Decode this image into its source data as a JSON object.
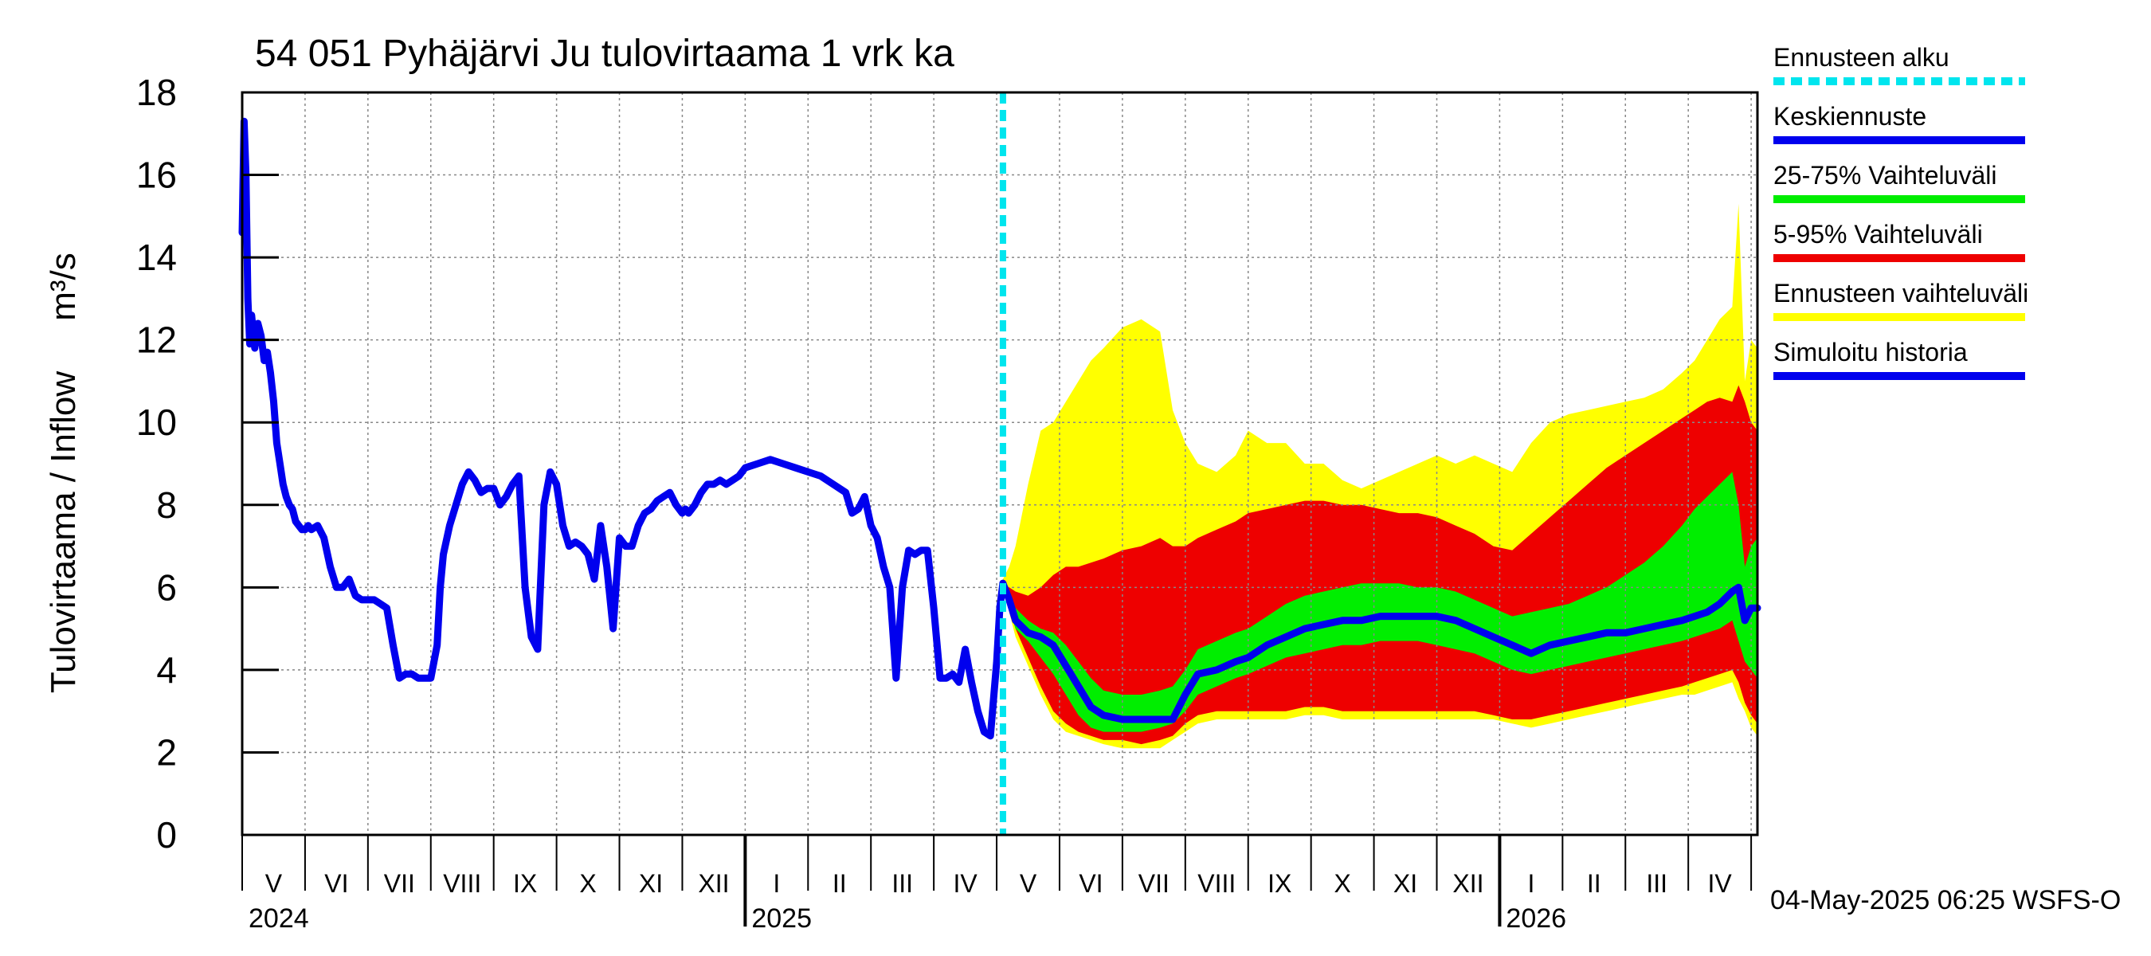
{
  "chart_data": {
    "type": "line",
    "title": "54 051 Pyhäjärvi Ju tulovirtaama 1 vrk ka",
    "ylabel_main": "Tulovirtaama / Inflow",
    "ylabel_unit": "m³/s",
    "ylim": [
      0,
      18
    ],
    "yticks": [
      "0",
      "2",
      "4",
      "6",
      "8",
      "10",
      "12",
      "14",
      "16",
      "18"
    ],
    "x_start_month": 0,
    "x_end_month": 24.1,
    "forecast_start_month": 12.1,
    "months": [
      {
        "label": "V"
      },
      {
        "label": "VI"
      },
      {
        "label": "VII"
      },
      {
        "label": "VIII"
      },
      {
        "label": "IX"
      },
      {
        "label": "X"
      },
      {
        "label": "XI"
      },
      {
        "label": "XII"
      },
      {
        "label": "I"
      },
      {
        "label": "II"
      },
      {
        "label": "III"
      },
      {
        "label": "IV"
      },
      {
        "label": "V"
      },
      {
        "label": "VI"
      },
      {
        "label": "VII"
      },
      {
        "label": "VIII"
      },
      {
        "label": "IX"
      },
      {
        "label": "X"
      },
      {
        "label": "XI"
      },
      {
        "label": "XII"
      },
      {
        "label": "I"
      },
      {
        "label": "II"
      },
      {
        "label": "III"
      },
      {
        "label": "IV"
      }
    ],
    "years": [
      {
        "label": "2024",
        "month": 0
      },
      {
        "label": "2025",
        "month": 8
      },
      {
        "label": "2026",
        "month": 20
      }
    ],
    "legend": [
      {
        "label": "Ennusteen alku",
        "color": "#00e5ee",
        "style": "dashed"
      },
      {
        "label": "Keskiennuste",
        "color": "#0000ee",
        "style": "solid"
      },
      {
        "label": "25-75% Vaihteluväli",
        "color": "#00ee00",
        "style": "solid"
      },
      {
        "label": "5-95% Vaihteluväli",
        "color": "#ee0000",
        "style": "solid"
      },
      {
        "label": "Ennusteen vaihteluväli",
        "color": "#ffff00",
        "style": "solid"
      },
      {
        "label": "Simuloitu historia",
        "color": "#0000ee",
        "style": "solid"
      }
    ],
    "footer": "04-May-2025 06:25 WSFS-O",
    "series": [
      {
        "name": "Simuloitu historia",
        "color": "#0000ee",
        "x": [
          0.0,
          0.03,
          0.06,
          0.09,
          0.12,
          0.15,
          0.2,
          0.25,
          0.3,
          0.35,
          0.4,
          0.45,
          0.5,
          0.55,
          0.6,
          0.65,
          0.7,
          0.75,
          0.8,
          0.85,
          0.9,
          0.95,
          1.0,
          1.05,
          1.1,
          1.2,
          1.3,
          1.4,
          1.5,
          1.6,
          1.7,
          1.8,
          1.9,
          2.0,
          2.1,
          2.2,
          2.3,
          2.4,
          2.5,
          2.6,
          2.7,
          2.8,
          2.9,
          3.0,
          3.1,
          3.15,
          3.2,
          3.3,
          3.4,
          3.5,
          3.6,
          3.7,
          3.8,
          3.9,
          4.0,
          4.1,
          4.2,
          4.3,
          4.4,
          4.5,
          4.6,
          4.7,
          4.8,
          4.9,
          5.0,
          5.1,
          5.2,
          5.3,
          5.4,
          5.5,
          5.6,
          5.7,
          5.8,
          5.9,
          6.0,
          6.1,
          6.2,
          6.3,
          6.4,
          6.5,
          6.6,
          6.7,
          6.8,
          6.9,
          7.0,
          7.05,
          7.1,
          7.15,
          7.2,
          7.3,
          7.4,
          7.5,
          7.6,
          7.7,
          7.8,
          7.9,
          8.0,
          8.2,
          8.4,
          8.6,
          8.8,
          9.0,
          9.2,
          9.4,
          9.6,
          9.7,
          9.8,
          9.9,
          10.0,
          10.1,
          10.2,
          10.3,
          10.4,
          10.5,
          10.6,
          10.7,
          10.8,
          10.9,
          11.0,
          11.1,
          11.2,
          11.3,
          11.4,
          11.5,
          11.6,
          11.7,
          11.8,
          11.9,
          12.0,
          12.05,
          12.1
        ],
        "values": [
          14.6,
          17.3,
          16.0,
          13.0,
          11.9,
          12.6,
          11.8,
          12.4,
          12.1,
          11.5,
          11.7,
          11.2,
          10.5,
          9.5,
          9.0,
          8.5,
          8.2,
          8.0,
          7.9,
          7.6,
          7.5,
          7.4,
          7.4,
          7.5,
          7.4,
          7.5,
          7.2,
          6.5,
          6.0,
          6.0,
          6.2,
          5.8,
          5.7,
          5.7,
          5.7,
          5.6,
          5.5,
          4.6,
          3.8,
          3.9,
          3.9,
          3.8,
          3.8,
          3.8,
          4.6,
          6.0,
          6.8,
          7.5,
          8.0,
          8.5,
          8.8,
          8.6,
          8.3,
          8.4,
          8.4,
          8.0,
          8.2,
          8.5,
          8.7,
          6.0,
          4.8,
          4.5,
          8.0,
          8.8,
          8.5,
          7.5,
          7.0,
          7.1,
          7.0,
          6.8,
          6.2,
          7.5,
          6.5,
          5.0,
          7.2,
          7.0,
          7.0,
          7.5,
          7.8,
          7.9,
          8.1,
          8.2,
          8.3,
          8.0,
          7.8,
          7.9,
          7.8,
          7.9,
          8.0,
          8.3,
          8.5,
          8.5,
          8.6,
          8.5,
          8.6,
          8.7,
          8.9,
          9.0,
          9.1,
          9.0,
          8.9,
          8.8,
          8.7,
          8.5,
          8.3,
          7.8,
          7.9,
          8.2,
          7.5,
          7.2,
          6.5,
          6.0,
          3.8,
          6.0,
          6.9,
          6.8,
          6.9,
          6.9,
          5.5,
          3.8,
          3.8,
          3.9,
          3.7,
          4.5,
          3.7,
          3.0,
          2.5,
          2.4,
          4.2,
          5.5,
          6.1
        ]
      },
      {
        "name": "Keskiennuste",
        "color": "#0000ee",
        "x": [
          12.1,
          12.2,
          12.3,
          12.5,
          12.7,
          12.9,
          13.1,
          13.3,
          13.5,
          13.7,
          14.0,
          14.3,
          14.6,
          14.8,
          15.0,
          15.2,
          15.5,
          15.8,
          16.0,
          16.3,
          16.6,
          16.9,
          17.2,
          17.5,
          17.8,
          18.1,
          18.4,
          18.7,
          19.0,
          19.3,
          19.6,
          19.9,
          20.2,
          20.5,
          20.8,
          21.1,
          21.4,
          21.7,
          22.0,
          22.3,
          22.6,
          22.9,
          23.1,
          23.3,
          23.5,
          23.7,
          23.8,
          23.9,
          24.0,
          24.1
        ],
        "values": [
          6.1,
          5.7,
          5.2,
          4.9,
          4.8,
          4.6,
          4.1,
          3.6,
          3.1,
          2.9,
          2.8,
          2.8,
          2.8,
          2.8,
          3.4,
          3.9,
          4.0,
          4.2,
          4.3,
          4.6,
          4.8,
          5.0,
          5.1,
          5.2,
          5.2,
          5.3,
          5.3,
          5.3,
          5.3,
          5.2,
          5.0,
          4.8,
          4.6,
          4.4,
          4.6,
          4.7,
          4.8,
          4.9,
          4.9,
          5.0,
          5.1,
          5.2,
          5.3,
          5.4,
          5.6,
          5.9,
          6.0,
          5.2,
          5.5,
          5.5
        ]
      }
    ],
    "bands": {
      "x": [
        12.1,
        12.2,
        12.3,
        12.5,
        12.7,
        12.9,
        13.1,
        13.3,
        13.5,
        13.7,
        14.0,
        14.3,
        14.6,
        14.8,
        15.0,
        15.2,
        15.5,
        15.8,
        16.0,
        16.3,
        16.6,
        16.9,
        17.2,
        17.5,
        17.8,
        18.1,
        18.4,
        18.7,
        19.0,
        19.3,
        19.6,
        19.9,
        20.2,
        20.5,
        20.8,
        21.1,
        21.4,
        21.7,
        22.0,
        22.3,
        22.6,
        22.9,
        23.1,
        23.3,
        23.5,
        23.7,
        23.8,
        23.9,
        24.0,
        24.1
      ],
      "min": [
        6.1,
        5.4,
        4.8,
        4.1,
        3.4,
        2.8,
        2.5,
        2.4,
        2.3,
        2.2,
        2.1,
        2.1,
        2.1,
        2.3,
        2.5,
        2.7,
        2.8,
        2.8,
        2.8,
        2.8,
        2.8,
        2.9,
        2.9,
        2.8,
        2.8,
        2.8,
        2.8,
        2.8,
        2.8,
        2.8,
        2.8,
        2.8,
        2.7,
        2.6,
        2.7,
        2.8,
        2.9,
        3.0,
        3.1,
        3.2,
        3.3,
        3.4,
        3.4,
        3.5,
        3.6,
        3.7,
        3.3,
        3.0,
        2.6,
        2.4
      ],
      "p5": [
        6.1,
        5.5,
        5.0,
        4.3,
        3.6,
        3.0,
        2.7,
        2.5,
        2.4,
        2.3,
        2.3,
        2.2,
        2.3,
        2.4,
        2.7,
        2.9,
        3.0,
        3.0,
        3.0,
        3.0,
        3.0,
        3.1,
        3.1,
        3.0,
        3.0,
        3.0,
        3.0,
        3.0,
        3.0,
        3.0,
        3.0,
        2.9,
        2.8,
        2.8,
        2.9,
        3.0,
        3.1,
        3.2,
        3.3,
        3.4,
        3.5,
        3.6,
        3.7,
        3.8,
        3.9,
        4.0,
        3.7,
        3.2,
        2.9,
        2.7
      ],
      "p25": [
        6.1,
        5.5,
        5.0,
        4.7,
        4.3,
        3.9,
        3.4,
        2.9,
        2.6,
        2.5,
        2.5,
        2.5,
        2.6,
        2.7,
        3.0,
        3.4,
        3.6,
        3.8,
        3.9,
        4.1,
        4.3,
        4.4,
        4.5,
        4.6,
        4.6,
        4.7,
        4.7,
        4.7,
        4.6,
        4.5,
        4.4,
        4.2,
        4.0,
        3.9,
        4.0,
        4.1,
        4.2,
        4.3,
        4.4,
        4.5,
        4.6,
        4.7,
        4.8,
        4.9,
        5.0,
        5.2,
        4.7,
        4.2,
        4.0,
        3.8
      ],
      "p75": [
        6.1,
        5.9,
        5.5,
        5.2,
        5.0,
        4.9,
        4.6,
        4.2,
        3.8,
        3.5,
        3.4,
        3.4,
        3.5,
        3.6,
        4.0,
        4.5,
        4.7,
        4.9,
        5.0,
        5.3,
        5.6,
        5.8,
        5.9,
        6.0,
        6.1,
        6.1,
        6.1,
        6.0,
        6.0,
        5.9,
        5.7,
        5.5,
        5.3,
        5.4,
        5.5,
        5.6,
        5.8,
        6.0,
        6.3,
        6.6,
        7.0,
        7.5,
        7.9,
        8.2,
        8.5,
        8.8,
        8.0,
        6.5,
        7.0,
        7.2
      ],
      "p95": [
        6.1,
        6.0,
        5.9,
        5.8,
        6.0,
        6.3,
        6.5,
        6.5,
        6.6,
        6.7,
        6.9,
        7.0,
        7.2,
        7.0,
        7.0,
        7.2,
        7.4,
        7.6,
        7.8,
        7.9,
        8.0,
        8.1,
        8.1,
        8.0,
        8.0,
        7.9,
        7.8,
        7.8,
        7.7,
        7.5,
        7.3,
        7.0,
        6.9,
        7.3,
        7.7,
        8.1,
        8.5,
        8.9,
        9.2,
        9.5,
        9.8,
        10.1,
        10.3,
        10.5,
        10.6,
        10.5,
        10.9,
        10.5,
        10.0,
        9.8
      ],
      "max": [
        6.2,
        6.5,
        7.0,
        8.5,
        9.8,
        10.0,
        10.5,
        11.0,
        11.5,
        11.8,
        12.3,
        12.5,
        12.2,
        10.3,
        9.5,
        9.0,
        8.8,
        9.2,
        9.8,
        9.5,
        9.5,
        9.0,
        9.0,
        8.6,
        8.4,
        8.6,
        8.8,
        9.0,
        9.2,
        9.0,
        9.2,
        9.0,
        8.8,
        9.5,
        10.0,
        10.2,
        10.3,
        10.4,
        10.5,
        10.6,
        10.8,
        11.2,
        11.5,
        12.0,
        12.5,
        12.8,
        15.3,
        11.0,
        12.0,
        11.8
      ]
    }
  }
}
